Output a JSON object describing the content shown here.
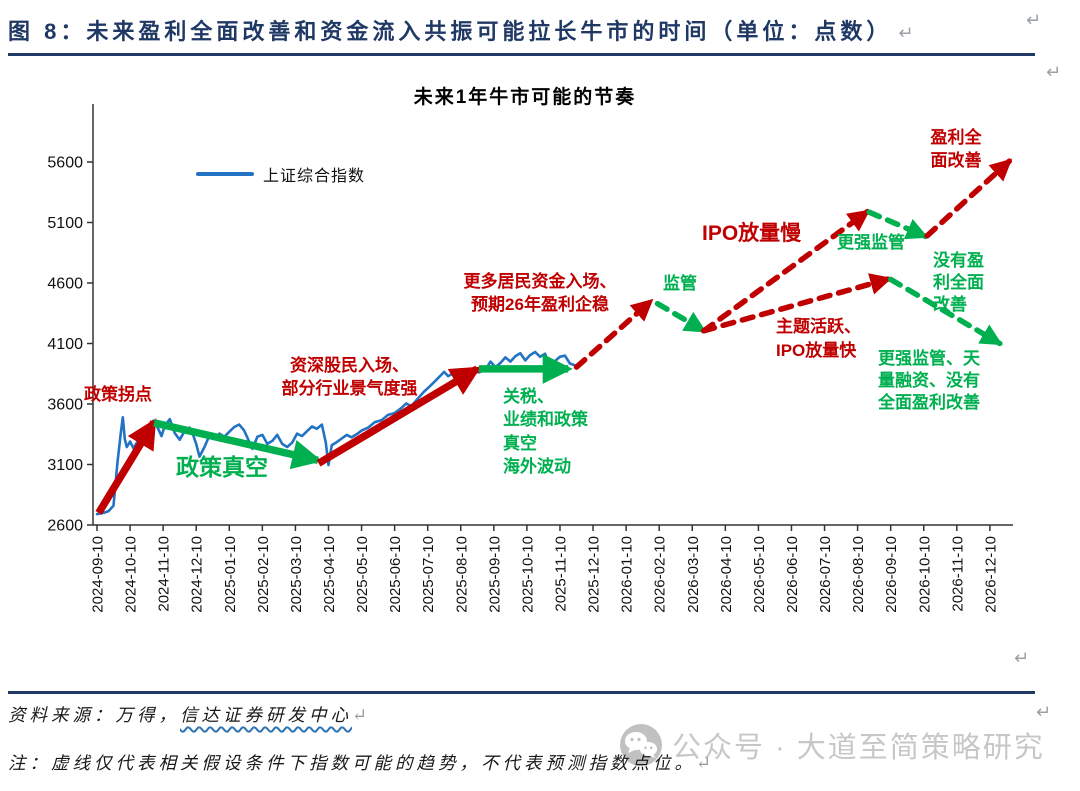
{
  "document": {
    "figure_title": "图 8：未来盈利全面改善和资金流入共振可能拉长牛市的时间（单位：点数）",
    "pilcrow": "↵",
    "source_prefix": "资料来源：万得，",
    "source_underlined": "信达证券研发中心",
    "note": "注：虚线仅代表相关假设条件下指数可能的趋势，不代表预测指数点位。",
    "watermark_text": "公众号 · 大道至简策略研究"
  },
  "colors": {
    "red": "#C00000",
    "green": "#00B050",
    "blue": "#2273C3",
    "navy": "#1F3864",
    "axis": "#333333"
  },
  "chart_data": {
    "type": "line",
    "title": "未来1年牛市可能的节奏",
    "legend": [
      {
        "label": "上证综合指数",
        "color": "#2273C3"
      }
    ],
    "ylabel": "",
    "xlabel": "",
    "ylim": [
      2600,
      5600
    ],
    "y_ticks": [
      2600,
      3100,
      3600,
      4100,
      4600,
      5100,
      5600
    ],
    "grid": false,
    "legend_position": "upper-left-inside",
    "x_labels": [
      "2024-09-10",
      "2024-10-10",
      "2024-11-10",
      "2024-12-10",
      "2025-01-10",
      "2025-02-10",
      "2025-03-10",
      "2025-04-10",
      "2025-05-10",
      "2025-06-10",
      "2025-07-10",
      "2025-08-10",
      "2025-09-10",
      "2025-10-10",
      "2025-11-10",
      "2025-12-10",
      "2026-01-10",
      "2026-02-10",
      "2026-03-10",
      "2026-04-10",
      "2026-05-10",
      "2026-06-10",
      "2026-07-10",
      "2026-08-10",
      "2026-09-10",
      "2026-10-10",
      "2026-11-10",
      "2026-12-10"
    ],
    "series": [
      {
        "name": "上证综合指数",
        "color": "#2273C3",
        "points": [
          [
            0,
            2690
          ],
          [
            0.2,
            2700
          ],
          [
            0.35,
            2715
          ],
          [
            0.5,
            2760
          ],
          [
            0.62,
            3120
          ],
          [
            0.72,
            3360
          ],
          [
            0.78,
            3490
          ],
          [
            0.84,
            3310
          ],
          [
            0.9,
            3245
          ],
          [
            1.0,
            3290
          ],
          [
            1.1,
            3235
          ],
          [
            1.25,
            3300
          ],
          [
            1.4,
            3275
          ],
          [
            1.55,
            3390
          ],
          [
            1.7,
            3460
          ],
          [
            1.8,
            3425
          ],
          [
            1.95,
            3335
          ],
          [
            2.05,
            3420
          ],
          [
            2.2,
            3475
          ],
          [
            2.35,
            3360
          ],
          [
            2.5,
            3305
          ],
          [
            2.65,
            3375
          ],
          [
            2.8,
            3405
          ],
          [
            2.9,
            3350
          ],
          [
            3.0,
            3270
          ],
          [
            3.1,
            3165
          ],
          [
            3.25,
            3245
          ],
          [
            3.4,
            3340
          ],
          [
            3.55,
            3310
          ],
          [
            3.7,
            3355
          ],
          [
            3.85,
            3330
          ],
          [
            4.0,
            3370
          ],
          [
            4.15,
            3410
          ],
          [
            4.3,
            3430
          ],
          [
            4.45,
            3380
          ],
          [
            4.6,
            3290
          ],
          [
            4.7,
            3230
          ],
          [
            4.85,
            3330
          ],
          [
            5.0,
            3345
          ],
          [
            5.15,
            3270
          ],
          [
            5.3,
            3295
          ],
          [
            5.45,
            3345
          ],
          [
            5.6,
            3270
          ],
          [
            5.75,
            3245
          ],
          [
            5.9,
            3280
          ],
          [
            6.05,
            3355
          ],
          [
            6.2,
            3335
          ],
          [
            6.35,
            3375
          ],
          [
            6.5,
            3415
          ],
          [
            6.65,
            3395
          ],
          [
            6.8,
            3430
          ],
          [
            6.92,
            3280
          ],
          [
            7.0,
            3095
          ],
          [
            7.1,
            3260
          ],
          [
            7.25,
            3285
          ],
          [
            7.4,
            3315
          ],
          [
            7.55,
            3345
          ],
          [
            7.7,
            3325
          ],
          [
            7.85,
            3350
          ],
          [
            8.0,
            3380
          ],
          [
            8.2,
            3405
          ],
          [
            8.4,
            3450
          ],
          [
            8.6,
            3465
          ],
          [
            8.8,
            3510
          ],
          [
            9.0,
            3525
          ],
          [
            9.2,
            3565
          ],
          [
            9.35,
            3605
          ],
          [
            9.5,
            3580
          ],
          [
            9.7,
            3645
          ],
          [
            9.9,
            3705
          ],
          [
            10.1,
            3755
          ],
          [
            10.3,
            3810
          ],
          [
            10.5,
            3865
          ],
          [
            10.62,
            3830
          ],
          [
            10.8,
            3860
          ],
          [
            10.95,
            3885
          ],
          [
            11.1,
            3825
          ],
          [
            11.25,
            3870
          ],
          [
            11.4,
            3885
          ],
          [
            11.55,
            3860
          ],
          [
            11.75,
            3885
          ],
          [
            11.9,
            3950
          ],
          [
            12.05,
            3905
          ],
          [
            12.2,
            3940
          ],
          [
            12.35,
            3985
          ],
          [
            12.5,
            3950
          ],
          [
            12.65,
            3995
          ],
          [
            12.8,
            4020
          ],
          [
            12.95,
            3960
          ],
          [
            13.1,
            4005
          ],
          [
            13.25,
            4030
          ],
          [
            13.4,
            3990
          ],
          [
            13.55,
            4015
          ],
          [
            13.7,
            3905
          ],
          [
            13.85,
            3955
          ],
          [
            14.0,
            3990
          ],
          [
            14.15,
            4000
          ],
          [
            14.3,
            3935
          ],
          [
            14.45,
            3920
          ]
        ]
      }
    ],
    "trend_arrows": [
      {
        "name": "policy-turn-rally",
        "style": "solid",
        "color": "red",
        "from": [
          0.05,
          2700
        ],
        "to": [
          1.72,
          3450
        ]
      },
      {
        "name": "policy-vacuum-drift",
        "style": "solid",
        "color": "green",
        "from": [
          1.72,
          3445
        ],
        "to": [
          6.68,
          3135
        ]
      },
      {
        "name": "veteran-investor-rally",
        "style": "solid",
        "color": "red",
        "from": [
          6.7,
          3110
        ],
        "to": [
          11.5,
          3890
        ]
      },
      {
        "name": "sideways-consolidation",
        "style": "solid",
        "color": "green",
        "from": [
          11.55,
          3890
        ],
        "to": [
          14.25,
          3890
        ]
      },
      {
        "name": "projected-rally",
        "style": "dashed",
        "color": "red",
        "from": [
          14.5,
          3905
        ],
        "to": [
          16.75,
          4450
        ]
      },
      {
        "name": "regulation-dip",
        "style": "dashed",
        "color": "green",
        "from": [
          16.95,
          4430
        ],
        "to": [
          18.35,
          4205
        ]
      },
      {
        "name": "ipo-slow-path",
        "style": "dashed",
        "color": "red",
        "from": [
          18.35,
          4205
        ],
        "to": [
          23.3,
          5190
        ]
      },
      {
        "name": "theme-active-path",
        "style": "dashed",
        "color": "red",
        "from": [
          18.35,
          4205
        ],
        "to": [
          23.95,
          4635
        ]
      },
      {
        "name": "stronger-regulation-dip",
        "style": "dashed",
        "color": "green",
        "from": [
          23.35,
          5185
        ],
        "to": [
          25.05,
          4985
        ]
      },
      {
        "name": "full-profit-improvement-rally",
        "style": "dashed",
        "color": "red",
        "from": [
          25.1,
          4990
        ],
        "to": [
          27.6,
          5610
        ]
      },
      {
        "name": "no-profit-improvement-decline",
        "style": "dashed",
        "color": "green",
        "from": [
          24.0,
          4630
        ],
        "to": [
          27.3,
          4100
        ]
      }
    ],
    "annotations": [
      {
        "name": "policy-turning-point",
        "text": "政策拐点",
        "color": "red",
        "x": 84,
        "y": 384,
        "size": 17
      },
      {
        "name": "policy-vacuum",
        "text": "政策真空",
        "color": "green",
        "x": 176,
        "y": 452,
        "size": 23
      },
      {
        "name": "veteran-investors-entry",
        "text": "资深股民入场、\n部分行业景气度强",
        "color": "red",
        "x": 262,
        "y": 355,
        "size": 17,
        "align": "center",
        "width": 175
      },
      {
        "name": "more-household-funds",
        "text": "更多居民资金入场、\n预期26年盈利企稳",
        "color": "red",
        "x": 450,
        "y": 271,
        "size": 17,
        "align": "center",
        "width": 180
      },
      {
        "name": "tariff-earnings-policy-vacuum",
        "text": "关税、\n业绩和政策\n真空\n海外波动",
        "color": "green",
        "x": 503,
        "y": 385,
        "size": 17,
        "lh": 1.38
      },
      {
        "name": "regulation",
        "text": "监管",
        "color": "green",
        "x": 663,
        "y": 273,
        "size": 17
      },
      {
        "name": "ipo-volume-slow",
        "text": "IPO放量慢",
        "color": "red",
        "x": 702,
        "y": 220,
        "size": 21
      },
      {
        "name": "stronger-regulation",
        "text": "更强监管",
        "color": "green",
        "x": 837,
        "y": 232,
        "size": 17
      },
      {
        "name": "theme-active-ipo-fast",
        "text": "主题活跃、\nIPO放量快",
        "color": "red",
        "x": 776,
        "y": 315,
        "size": 17,
        "lh": 1.4
      },
      {
        "name": "full-profit-improvement",
        "text": "盈利全\n面改善",
        "color": "red",
        "x": 921,
        "y": 127,
        "size": 17,
        "align": "center",
        "width": 70,
        "lh": 1.35
      },
      {
        "name": "no-full-profit-improvement",
        "text": "没有盈\n利全面\n改善",
        "color": "green",
        "x": 933,
        "y": 250,
        "size": 17,
        "lh": 1.3
      },
      {
        "name": "stronger-regulation-heavy-financing",
        "text": "更强监管、天\n量融资、没有\n全面盈利改善",
        "color": "green",
        "x": 867,
        "y": 348,
        "size": 17,
        "align": "center",
        "width": 124,
        "lh": 1.28
      }
    ]
  }
}
